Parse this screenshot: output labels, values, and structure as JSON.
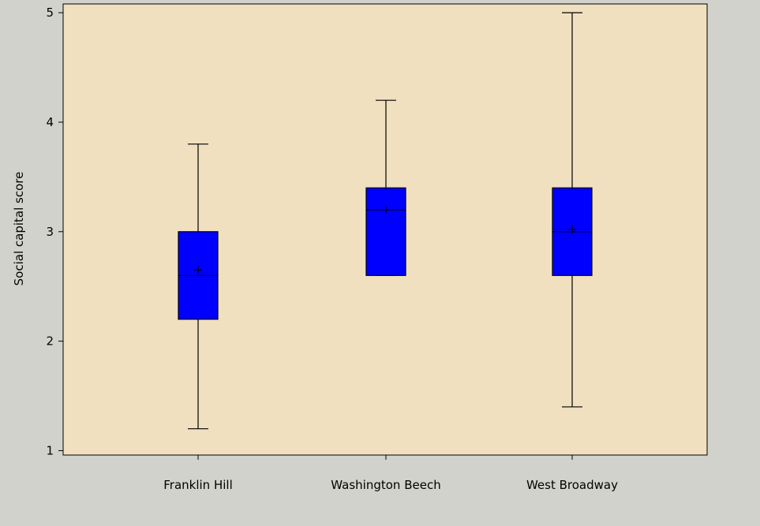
{
  "colors": {
    "page_background": "#d2d2cc",
    "plot_background": "#f0e0c0",
    "box_fill": "#0000ff",
    "line": "#000000"
  },
  "chart_data": {
    "type": "boxplot",
    "title": "",
    "xlabel": "",
    "ylabel": "Social capital score",
    "ylim": [
      0.96,
      5.08
    ],
    "yticks": [
      1,
      2,
      3,
      4,
      5
    ],
    "grid": false,
    "categories": [
      "Franklin Hill",
      "Washington Beech",
      "West Broadway"
    ],
    "boxes": [
      {
        "category": "Franklin Hill",
        "min": 1.2,
        "q1": 2.2,
        "median": 2.6,
        "q3": 3.0,
        "max": 3.8,
        "mean": 2.65
      },
      {
        "category": "Washington Beech",
        "min": 2.6,
        "q1": 2.6,
        "median": 3.2,
        "q3": 3.4,
        "max": 4.2,
        "mean": 3.2
      },
      {
        "category": "West Broadway",
        "min": 1.4,
        "q1": 2.6,
        "median": 3.0,
        "q3": 3.4,
        "max": 5.0,
        "mean": 3.02
      }
    ]
  }
}
